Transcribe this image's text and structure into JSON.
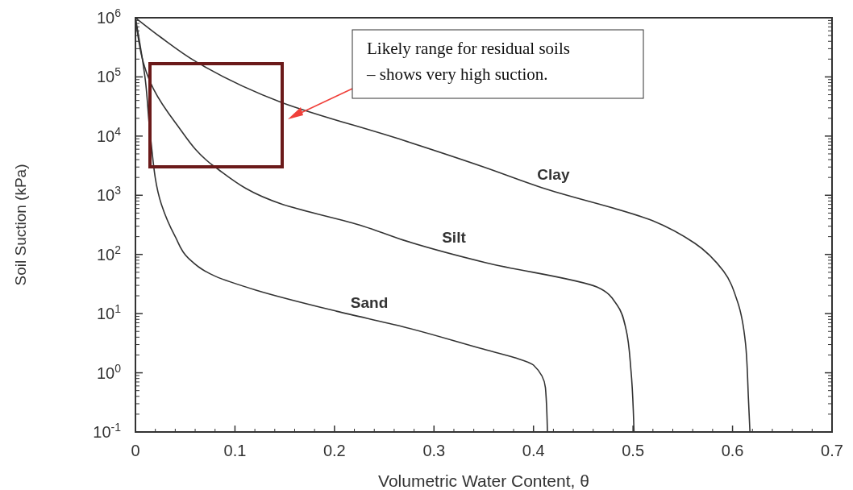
{
  "chart_data": {
    "type": "line",
    "xlabel": "Volumetric Water Content, θ",
    "ylabel": "Soil Suction (kPa)",
    "log": "y",
    "grid": false,
    "marker": "none",
    "line_style": "solid",
    "xlim": [
      0,
      0.7
    ],
    "xticks": [
      0,
      0.1,
      0.2,
      0.3,
      0.4,
      0.5,
      0.6,
      0.7
    ],
    "ylim": [
      0.1,
      1000000
    ],
    "yticks": [
      {
        "value": 0.1,
        "label": "10$^{-1}$"
      },
      {
        "value": 1,
        "label": "10$^{0}$"
      },
      {
        "value": 10,
        "label": "10$^{1}$"
      },
      {
        "value": 100,
        "label": "10$^{2}$"
      },
      {
        "value": 1000,
        "label": "10$^{3}$"
      },
      {
        "value": 10000,
        "label": "10$^{4}$"
      },
      {
        "value": 100000,
        "label": "10$^{5}$"
      },
      {
        "value": 1000000,
        "label": "10$^{6}$"
      }
    ],
    "series": [
      {
        "name": "Clay",
        "color": "#333333",
        "x": [
          0,
          0.026,
          0.061,
          0.147,
          0.269,
          0.35,
          0.408,
          0.52,
          0.562,
          0.591,
          0.605,
          0.613,
          0.616,
          0.6175
        ],
        "values": [
          1000000,
          460000,
          180000,
          37000,
          8500,
          3000,
          1350,
          370,
          155,
          52,
          16,
          3.2,
          0.36,
          0.1
        ]
      },
      {
        "name": "Silt",
        "color": "#333333",
        "x": [
          0,
          0.018,
          0.04,
          0.08,
          0.147,
          0.229,
          0.269,
          0.353,
          0.464,
          0.484,
          0.493,
          0.498,
          0.501
        ],
        "values": [
          1000000,
          63000,
          17000,
          3000,
          710,
          300,
          175,
          72,
          28,
          14,
          5.4,
          1.07,
          0.1
        ]
      },
      {
        "name": "Sand",
        "color": "#333333",
        "x": [
          0,
          0.01,
          0.015,
          0.026,
          0.04,
          0.053,
          0.08,
          0.121,
          0.202,
          0.269,
          0.35,
          0.381,
          0.4,
          0.412,
          0.414
        ],
        "values": [
          1000000,
          87000,
          10000,
          710,
          200,
          87,
          43,
          25,
          11,
          6,
          2.5,
          1.8,
          1.35,
          0.56,
          0.1
        ]
      }
    ],
    "annotations": [
      "Likely range for residual soils – shows very high suction."
    ]
  }
}
